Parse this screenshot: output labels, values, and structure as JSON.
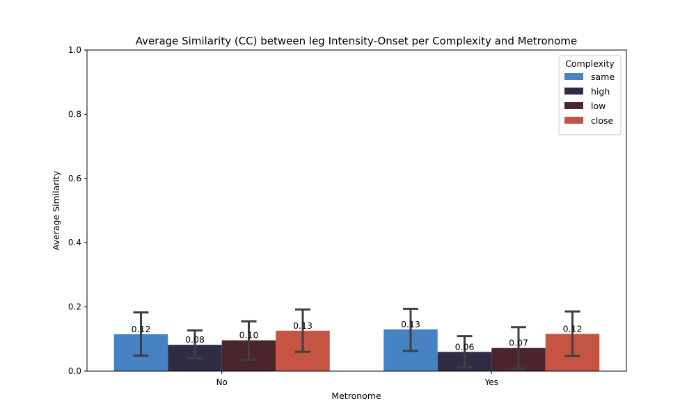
{
  "chart_data": {
    "type": "bar",
    "title": "Average Similarity (CC) between leg Intensity-Onset per Complexity and Metronome",
    "xlabel": "Metronome",
    "ylabel": "Average Similarity",
    "ylim": [
      0,
      1.0
    ],
    "yticks": [
      "0.0",
      "0.2",
      "0.4",
      "0.6",
      "0.8",
      "1.0"
    ],
    "categories": [
      "No",
      "Yes"
    ],
    "legend": {
      "title": "Complexity",
      "placement": "top-right"
    },
    "grid": false,
    "series": [
      {
        "name": "same",
        "color": "#4682c4",
        "values": [
          0.115,
          0.13
        ],
        "error_low": [
          0.048,
          0.063
        ],
        "error_high": [
          0.183,
          0.194
        ],
        "labels": [
          "0.12",
          "0.13"
        ]
      },
      {
        "name": "high",
        "color": "#2e2d45",
        "values": [
          0.082,
          0.06
        ],
        "error_low": [
          0.04,
          0.012
        ],
        "error_high": [
          0.127,
          0.109
        ],
        "labels": [
          "0.08",
          "0.06"
        ]
      },
      {
        "name": "low",
        "color": "#4a252c",
        "values": [
          0.096,
          0.072
        ],
        "error_low": [
          0.035,
          0.008
        ],
        "error_high": [
          0.155,
          0.137
        ],
        "labels": [
          "0.10",
          "0.07"
        ]
      },
      {
        "name": "close",
        "color": "#c65444",
        "values": [
          0.126,
          0.116
        ],
        "error_low": [
          0.06,
          0.047
        ],
        "error_high": [
          0.192,
          0.186
        ],
        "labels": [
          "0.13",
          "0.12"
        ]
      }
    ]
  }
}
